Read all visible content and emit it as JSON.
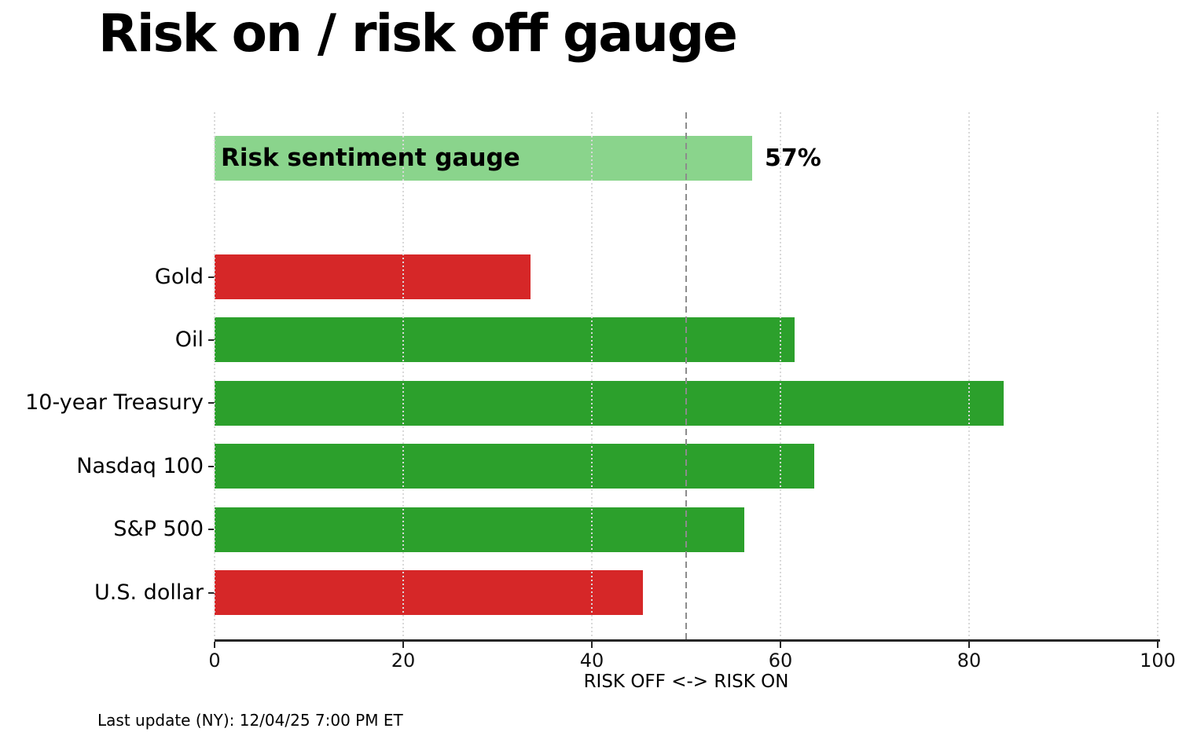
{
  "page": {
    "title": "Risk on / risk off gauge"
  },
  "footer": {
    "last_update": "Last update (NY): 12/04/25 7:00 PM ET"
  },
  "chart_data": {
    "type": "bar",
    "orientation": "horizontal",
    "title": "Risk on / risk off gauge",
    "xlabel": "RISK OFF <-> RISK ON",
    "xlim": [
      0,
      100
    ],
    "xticks": [
      0,
      20,
      40,
      60,
      80,
      100
    ],
    "grid": {
      "vertical": true,
      "style": "dotted",
      "color": "#d9d9d9",
      "above_bars": true
    },
    "threshold_line": {
      "x": 50,
      "style": "dashed",
      "color": "#8c8c8c"
    },
    "gauge": {
      "label": "Risk sentiment gauge",
      "value": 57,
      "display_value": "57%",
      "color": "#8ad48c"
    },
    "categories": [
      "Gold",
      "Oil",
      "10-year Treasury",
      "Nasdaq 100",
      "S&P 500",
      "U.S. dollar"
    ],
    "values": [
      33.5,
      61.5,
      83.7,
      63.6,
      56.2,
      45.4
    ],
    "bar_colors": [
      "#d62728",
      "#2ca02c",
      "#2ca02c",
      "#2ca02c",
      "#2ca02c",
      "#d62728"
    ],
    "palette": {
      "risk_on_green": "#2ca02c",
      "risk_off_red": "#d62728",
      "gauge_green": "#8ad48c",
      "threshold_gray": "#8c8c8c",
      "axis_dark": "#262626"
    },
    "legend": null
  }
}
